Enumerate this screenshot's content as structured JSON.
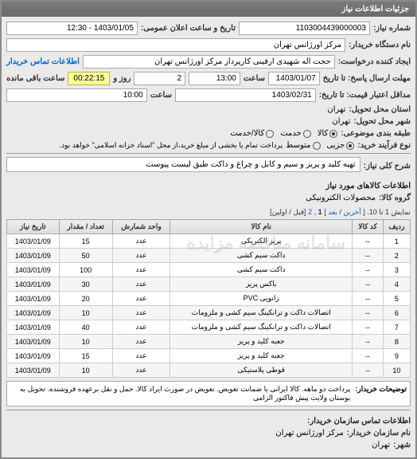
{
  "panel_title": "جزئیات اطلاعات نیاز",
  "fields": {
    "request_no_label": "شماره نیاز:",
    "request_no": "1103004439000003",
    "public_datetime_label": "تاریخ و ساعت اعلان عمومی:",
    "public_datetime": "1403/01/05 - 12:30",
    "buyer_device_label": "نام دستگاه خریدار:",
    "buyer_device": "مرکز اورژانس تهران",
    "requester_label": "ایجاد کننده درخواست:",
    "requester": "حجت اله شهیدی ارقینی کارپرداز مرکز اورژانس تهران",
    "buyer_contact_label": "اطلاعات تماس خریدار",
    "deadline_send_label": "مهلت ارسال پاسخ: تا تاریخ",
    "deadline_send_date": "1403/01/07",
    "deadline_send_time_label": "ساعت",
    "deadline_send_time": "13:00",
    "days_label": "روز و",
    "days_value": "2",
    "remaining_label": "ساعت باقی مانده",
    "remaining_time": "00:22:15",
    "validity_label": "مداقل اعتبار قیمت: تا تاریخ:",
    "validity_date": "1403/02/31",
    "validity_time_label": "ساعت",
    "validity_time": "10:00",
    "delivery_province_label": "استان محل تحویل:",
    "delivery_province": "تهران",
    "delivery_city_label": "شهر محل تحویل:",
    "delivery_city": "تهران",
    "budget_label": "طبقه بندی موضوعی:",
    "purchase_type_label": "نوع فرآیند خرید:",
    "payment_note": "پرداخت تمام یا بخشی از مبلغ خرید،از محل \"اسناد خزانه اسلامی\" خواهد بود."
  },
  "radios": {
    "budget": [
      {
        "label": "کالا",
        "checked": true
      },
      {
        "label": "خدمت",
        "checked": false
      },
      {
        "label": "کالا/خدمت",
        "checked": false
      }
    ],
    "purchase": [
      {
        "label": "جزیی",
        "checked": true
      },
      {
        "label": "متوسط",
        "checked": false
      }
    ]
  },
  "need_desc_label": "شرح کلی نیاز:",
  "need_desc": "تهیه کلید و پریز و سیم و کابل و چراغ و داکت طبق لیست پیوست",
  "goods_section_title": "اطلاعات کالاهای مورد نیاز",
  "goods_group_label": "گروه کالا:",
  "goods_group": "محصولات الکترونیکی",
  "pager_text_prefix": "نمایش 1 تا 10. [",
  "pager_first": "آخرین",
  "pager_sep": "/",
  "pager_next": "بعد",
  "pager_text_mid": "]",
  "pager_pages": [
    "1",
    "2"
  ],
  "pager_suffix": "[قبل / اولین]",
  "table": {
    "columns": [
      "ردیف",
      "کد کالا",
      "نام کالا",
      "واحد شمارش",
      "تعداد / مقدار",
      "تاریخ نیاز"
    ],
    "rows": [
      [
        "1",
        "--",
        "پریز الکتریکی",
        "عدد",
        "15",
        "1403/01/09"
      ],
      [
        "2",
        "--",
        "داکت سیم کشی",
        "عدد",
        "50",
        "1403/01/09"
      ],
      [
        "3",
        "--",
        "داکت سیم کشی",
        "عدد",
        "100",
        "1403/01/09"
      ],
      [
        "4",
        "--",
        "باکس پریز",
        "عدد",
        "30",
        "1403/01/09"
      ],
      [
        "5",
        "--",
        "زانویی PVC",
        "عدد",
        "20",
        "1403/01/09"
      ],
      [
        "6",
        "--",
        "اتصالات داکت و ترانکینگ سیم کشی و ملزومات",
        "عدد",
        "10",
        "1403/01/09"
      ],
      [
        "7",
        "--",
        "اتصالات داکت و ترانکینگ سیم کشی و ملزومات",
        "عدد",
        "40",
        "1403/01/09"
      ],
      [
        "8",
        "--",
        "جعبه کلید و پریز",
        "عدد",
        "10",
        "1403/01/09"
      ],
      [
        "9",
        "--",
        "جعبه کلید و پریز",
        "عدد",
        "15",
        "1403/01/09"
      ],
      [
        "10",
        "--",
        "قوطی پلاستیکی",
        "عدد",
        "10",
        "1403/01/09"
      ]
    ]
  },
  "explain_label": "توضیحات خریدار:",
  "explain_text": "پرداخت دو ماهه. کالا ایرانی با ضمانت تعویض. تعویض در صورت ایراد کالا. حمل و نقل برعهده فروشنده. تحویل به بوستان ولایت پیش فاکتور الزامی",
  "contact_section_title": "اطلاعات تماس سازمان خریدار:",
  "org_name_label": "نام سازمان خریدار:",
  "org_name": "مرکز اورژانس تهران",
  "city_label": "شهر:",
  "city": "تهران",
  "watermark": "سامانه مناقصه مزایده"
}
